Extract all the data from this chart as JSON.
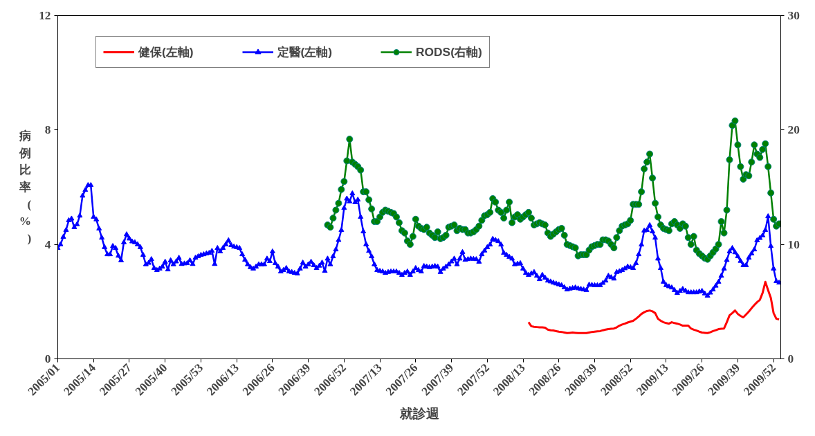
{
  "chart_data": {
    "type": "line",
    "xlabel": "就診週",
    "ylabel": "病例比率(%)",
    "categories": [
      "2005/01",
      null,
      null,
      null,
      null,
      null,
      null,
      null,
      null,
      null,
      null,
      null,
      null,
      "2005/14",
      null,
      null,
      null,
      null,
      null,
      null,
      null,
      null,
      null,
      null,
      null,
      null,
      "2005/27",
      null,
      null,
      null,
      null,
      null,
      null,
      null,
      null,
      null,
      null,
      null,
      null,
      "2005/40",
      null,
      null,
      null,
      null,
      null,
      null,
      null,
      null,
      null,
      null,
      null,
      null,
      "2005/53",
      null,
      null,
      null,
      null,
      null,
      null,
      null,
      null,
      null,
      null,
      null,
      null,
      "2006/13",
      null,
      null,
      null,
      null,
      null,
      null,
      null,
      null,
      null,
      null,
      null,
      null,
      "2006/26",
      null,
      null,
      null,
      null,
      null,
      null,
      null,
      null,
      null,
      null,
      null,
      null,
      "2006/39",
      null,
      null,
      null,
      null,
      null,
      null,
      null,
      null,
      null,
      null,
      null,
      null,
      "2006/52",
      null,
      null,
      null,
      null,
      null,
      null,
      null,
      null,
      null,
      null,
      null,
      null,
      "2007/13",
      null,
      null,
      null,
      null,
      null,
      null,
      null,
      null,
      null,
      null,
      null,
      null,
      "2007/26",
      null,
      null,
      null,
      null,
      null,
      null,
      null,
      null,
      null,
      null,
      null,
      null,
      "2007/39",
      null,
      null,
      null,
      null,
      null,
      null,
      null,
      null,
      null,
      null,
      null,
      null,
      "2007/52",
      null,
      null,
      null,
      null,
      null,
      null,
      null,
      null,
      null,
      null,
      null,
      null,
      "2008/13",
      null,
      null,
      null,
      null,
      null,
      null,
      null,
      null,
      null,
      null,
      null,
      null,
      "2008/26",
      null,
      null,
      null,
      null,
      null,
      null,
      null,
      null,
      null,
      null,
      null,
      null,
      "2008/39",
      null,
      null,
      null,
      null,
      null,
      null,
      null,
      null,
      null,
      null,
      null,
      null,
      "2008/52",
      null,
      null,
      null,
      null,
      null,
      null,
      null,
      null,
      null,
      null,
      null,
      null,
      "2009/13",
      null,
      null,
      null,
      null,
      null,
      null,
      null,
      null,
      null,
      null,
      null,
      null,
      "2009/26",
      null,
      null,
      null,
      null,
      null,
      null,
      null,
      null,
      null,
      null,
      null,
      null,
      "2009/39",
      null,
      null,
      null,
      null,
      null,
      null,
      null,
      null,
      null,
      null,
      null,
      null,
      "2009/52",
      null,
      null
    ],
    "ylim": [
      0,
      12
    ],
    "yticks": [
      0,
      4,
      8,
      12
    ],
    "y2lim": [
      0,
      30
    ],
    "y2ticks": [
      0,
      10,
      20,
      30
    ],
    "grid": false,
    "legend": "top",
    "series": [
      {
        "name": "健保(左軸)",
        "color": "#ff0000",
        "marker": "none",
        "values": [
          null,
          null,
          null,
          null,
          null,
          null,
          null,
          null,
          null,
          null,
          null,
          null,
          null,
          null,
          null,
          null,
          null,
          null,
          null,
          null,
          null,
          null,
          null,
          null,
          null,
          null,
          null,
          null,
          null,
          null,
          null,
          null,
          null,
          null,
          null,
          null,
          null,
          null,
          null,
          null,
          null,
          null,
          null,
          null,
          null,
          null,
          null,
          null,
          null,
          null,
          null,
          null,
          null,
          null,
          null,
          null,
          null,
          null,
          null,
          null,
          null,
          null,
          null,
          null,
          null,
          null,
          null,
          null,
          null,
          null,
          null,
          null,
          null,
          null,
          null,
          null,
          null,
          null,
          null,
          null,
          null,
          null,
          null,
          null,
          null,
          null,
          null,
          null,
          null,
          null,
          null,
          null,
          null,
          null,
          null,
          null,
          null,
          null,
          null,
          null,
          null,
          null,
          null,
          null,
          null,
          null,
          null,
          null,
          null,
          null,
          null,
          null,
          null,
          null,
          null,
          null,
          null,
          null,
          null,
          null,
          null,
          null,
          null,
          null,
          null,
          null,
          null,
          null,
          null,
          null,
          null,
          null,
          null,
          null,
          null,
          null,
          null,
          null,
          null,
          null,
          null,
          null,
          null,
          null,
          null,
          null,
          null,
          null,
          null,
          null,
          null,
          null,
          null,
          null,
          null,
          null,
          null,
          null,
          null,
          null,
          null,
          null,
          null,
          null,
          null,
          null,
          null,
          null,
          null,
          null,
          null,
          1.28,
          1.14,
          1.12,
          1.11,
          1.1,
          1.1,
          1.09,
          1.02,
          1.0,
          0.99,
          0.97,
          0.95,
          0.94,
          0.92,
          0.9,
          0.91,
          0.92,
          0.91,
          0.9,
          0.9,
          0.9,
          0.9,
          0.92,
          0.94,
          0.95,
          0.96,
          0.97,
          1.0,
          1.02,
          1.04,
          1.05,
          1.06,
          1.1,
          1.16,
          1.2,
          1.23,
          1.27,
          1.3,
          1.33,
          1.4,
          1.48,
          1.57,
          1.63,
          1.67,
          1.69,
          1.66,
          1.6,
          1.4,
          1.33,
          1.28,
          1.25,
          1.23,
          1.28,
          1.25,
          1.23,
          1.2,
          1.16,
          1.16,
          1.16,
          1.06,
          1.02,
          0.99,
          0.95,
          0.92,
          0.91,
          0.9,
          0.93,
          0.97,
          1.0,
          1.04,
          1.05,
          1.06,
          1.28,
          1.52,
          1.6,
          1.69,
          1.57,
          1.5,
          1.45,
          1.55,
          1.65,
          1.77,
          1.88,
          1.98,
          2.06,
          2.3,
          2.69,
          2.4,
          2.13,
          1.6,
          1.4,
          1.38
        ]
      },
      {
        "name": "定醫(左軸)",
        "color": "#0000ff",
        "marker": "triangle",
        "values": [
          3.87,
          4.0,
          4.26,
          4.5,
          4.84,
          4.9,
          4.6,
          4.7,
          5.0,
          5.7,
          5.9,
          6.07,
          6.07,
          4.96,
          4.87,
          4.55,
          4.23,
          3.9,
          3.65,
          3.65,
          3.94,
          3.87,
          3.6,
          3.44,
          4.07,
          4.35,
          4.2,
          4.1,
          4.07,
          4.0,
          3.9,
          3.63,
          3.3,
          3.35,
          3.48,
          3.17,
          3.1,
          3.15,
          3.22,
          3.39,
          3.12,
          3.44,
          3.3,
          3.4,
          3.53,
          3.31,
          3.33,
          3.34,
          3.44,
          3.31,
          3.53,
          3.58,
          3.63,
          3.65,
          3.68,
          3.7,
          3.77,
          3.31,
          3.87,
          3.75,
          3.87,
          4.0,
          4.14,
          3.97,
          3.92,
          3.9,
          3.87,
          3.65,
          3.46,
          3.3,
          3.2,
          3.15,
          3.22,
          3.3,
          3.3,
          3.3,
          3.5,
          3.41,
          3.75,
          3.34,
          3.22,
          3.05,
          3.1,
          3.17,
          3.05,
          3.03,
          3.0,
          2.98,
          3.15,
          3.36,
          3.22,
          3.3,
          3.39,
          3.27,
          3.17,
          3.25,
          3.36,
          3.07,
          3.5,
          3.3,
          3.58,
          3.82,
          4.15,
          4.5,
          5.27,
          5.6,
          5.5,
          5.78,
          5.47,
          5.56,
          4.96,
          4.45,
          4.0,
          3.77,
          3.58,
          3.3,
          3.1,
          3.07,
          3.05,
          3.0,
          3.03,
          3.05,
          3.05,
          3.05,
          3.0,
          2.93,
          3.0,
          3.05,
          2.93,
          3.05,
          3.17,
          3.1,
          3.05,
          3.24,
          3.22,
          3.2,
          3.22,
          3.24,
          3.22,
          3.03,
          3.15,
          3.22,
          3.3,
          3.4,
          3.5,
          3.3,
          3.5,
          3.73,
          3.46,
          3.48,
          3.5,
          3.49,
          3.48,
          3.39,
          3.65,
          3.78,
          3.9,
          3.99,
          4.19,
          4.15,
          4.11,
          3.99,
          3.7,
          3.63,
          3.56,
          3.5,
          3.3,
          3.32,
          3.34,
          3.15,
          3.0,
          2.93,
          2.98,
          3.03,
          2.9,
          2.78,
          2.93,
          2.83,
          2.73,
          2.7,
          2.66,
          2.63,
          2.6,
          2.57,
          2.5,
          2.42,
          2.45,
          2.47,
          2.49,
          2.46,
          2.44,
          2.42,
          2.4,
          2.59,
          2.58,
          2.57,
          2.57,
          2.57,
          2.65,
          2.73,
          2.9,
          2.85,
          2.8,
          3.03,
          3.06,
          3.1,
          3.16,
          3.22,
          3.2,
          3.17,
          3.34,
          3.65,
          3.99,
          4.48,
          4.5,
          4.67,
          4.45,
          4.23,
          3.5,
          3.17,
          2.69,
          2.57,
          2.53,
          2.49,
          2.4,
          2.3,
          2.37,
          2.44,
          2.38,
          2.32,
          2.32,
          2.32,
          2.32,
          2.35,
          2.37,
          2.28,
          2.2,
          2.31,
          2.42,
          2.55,
          2.69,
          2.9,
          3.15,
          3.45,
          3.75,
          3.87,
          3.72,
          3.58,
          3.42,
          3.27,
          3.27,
          3.53,
          3.68,
          3.82,
          4.14,
          4.22,
          4.31,
          4.5,
          4.98,
          3.94,
          3.15,
          2.71,
          2.66
        ]
      },
      {
        "name": "RODS(右軸)",
        "color": "#008000",
        "marker": "circle",
        "axis": "y2",
        "values": [
          null,
          null,
          null,
          null,
          null,
          null,
          null,
          null,
          null,
          null,
          null,
          null,
          null,
          null,
          null,
          null,
          null,
          null,
          null,
          null,
          null,
          null,
          null,
          null,
          null,
          null,
          null,
          null,
          null,
          null,
          null,
          null,
          null,
          null,
          null,
          null,
          null,
          null,
          null,
          null,
          null,
          null,
          null,
          null,
          null,
          null,
          null,
          null,
          null,
          null,
          null,
          null,
          null,
          null,
          null,
          null,
          null,
          null,
          null,
          null,
          null,
          null,
          null,
          null,
          null,
          null,
          null,
          null,
          null,
          null,
          null,
          null,
          null,
          null,
          null,
          null,
          null,
          null,
          null,
          null,
          null,
          null,
          null,
          null,
          null,
          null,
          null,
          null,
          null,
          null,
          null,
          null,
          null,
          null,
          null,
          null,
          null,
          null,
          11.7,
          11.5,
          12.3,
          13.0,
          13.6,
          14.8,
          15.5,
          17.3,
          19.2,
          17.2,
          17.0,
          16.8,
          16.5,
          14.6,
          14.6,
          13.9,
          13.1,
          12.0,
          12.0,
          12.4,
          12.8,
          13.0,
          12.9,
          12.8,
          12.7,
          12.4,
          11.9,
          11.2,
          11.0,
          10.3,
          10.0,
          10.7,
          12.2,
          11.6,
          11.4,
          11.3,
          11.5,
          11.0,
          10.8,
          10.6,
          11.1,
          10.5,
          10.6,
          10.8,
          11.5,
          11.6,
          11.7,
          11.2,
          11.4,
          11.3,
          11.3,
          11.0,
          11.0,
          11.1,
          11.3,
          11.6,
          12.1,
          12.5,
          12.6,
          12.8,
          14.0,
          13.7,
          13.0,
          12.8,
          12.3,
          13.0,
          13.7,
          11.9,
          12.4,
          12.6,
          12.2,
          12.4,
          12.6,
          12.8,
          12.3,
          11.7,
          11.8,
          11.9,
          11.8,
          11.7,
          11.0,
          10.7,
          10.9,
          11.1,
          11.3,
          11.4,
          10.8,
          10.0,
          9.9,
          9.8,
          9.7,
          9.0,
          9.1,
          9.1,
          9.1,
          9.5,
          9.8,
          9.9,
          10.0,
          10.0,
          10.4,
          10.4,
          10.3,
          10.0,
          9.7,
          10.6,
          11.2,
          11.6,
          11.7,
          11.8,
          12.1,
          13.5,
          13.5,
          13.5,
          14.6,
          16.6,
          17.2,
          17.9,
          15.8,
          13.6,
          12.4,
          11.7,
          11.4,
          11.3,
          11.2,
          11.8,
          12.0,
          11.7,
          11.4,
          11.8,
          11.6,
          10.6,
          10.0,
          10.7,
          9.5,
          9.2,
          9.0,
          8.8,
          8.7,
          9.0,
          9.3,
          9.6,
          10.0,
          12.0,
          11.0,
          13.0,
          17.4,
          20.4,
          20.8,
          18.7,
          16.8,
          15.7,
          16.1,
          16.0,
          17.2,
          18.7,
          17.9,
          17.6,
          18.3,
          18.8,
          16.8,
          14.5,
          12.2,
          11.6,
          11.8
        ]
      }
    ]
  }
}
